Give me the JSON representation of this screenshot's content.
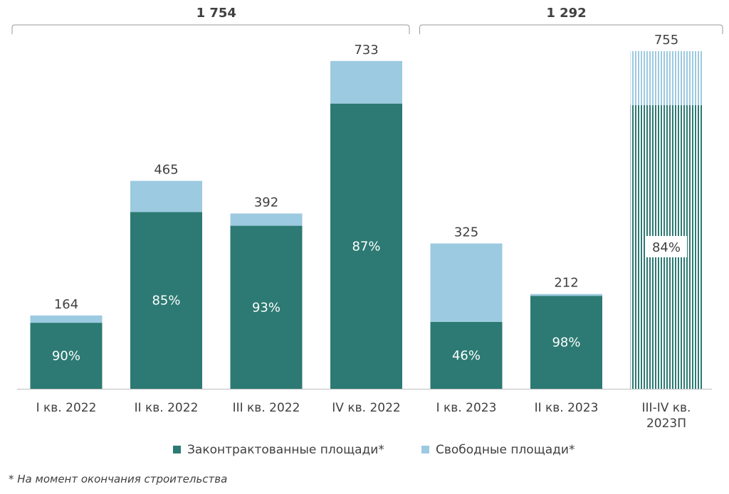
{
  "chart_data": {
    "type": "stacked-bar",
    "categories": [
      "I кв. 2022",
      "II кв. 2022",
      "III кв. 2022",
      "IV кв. 2022",
      "I кв. 2023",
      "II кв. 2023",
      "III-IV кв. 2023П"
    ],
    "category_lines": [
      [
        "I кв. 2022"
      ],
      [
        "II кв. 2022"
      ],
      [
        "III кв. 2022"
      ],
      [
        "IV кв. 2022"
      ],
      [
        "I кв. 2023"
      ],
      [
        "II кв. 2023"
      ],
      [
        "III-IV кв.",
        "2023П"
      ]
    ],
    "totals": [
      164,
      465,
      392,
      733,
      325,
      212,
      755
    ],
    "total_labels": [
      "164",
      "465",
      "392",
      "733",
      "325",
      "212",
      "755"
    ],
    "contracted_share_percent": [
      90,
      85,
      93,
      87,
      46,
      98,
      84
    ],
    "share_labels": [
      "90%",
      "85%",
      "93%",
      "87%",
      "46%",
      "98%",
      "84%"
    ],
    "forecast": [
      false,
      false,
      false,
      false,
      false,
      false,
      true
    ],
    "series": [
      {
        "name": "Законтрактованные площади*",
        "color": "#2c7a73"
      },
      {
        "name": "Свободные площади*",
        "color": "#9ccae0"
      }
    ],
    "ylim": [
      0,
      755
    ],
    "groups": [
      {
        "label": "1 754",
        "from": 0,
        "to": 3
      },
      {
        "label": "1 292",
        "from": 4,
        "to": 6
      }
    ],
    "legend_position": "bottom"
  },
  "footnote": "* На момент окончания строительства"
}
